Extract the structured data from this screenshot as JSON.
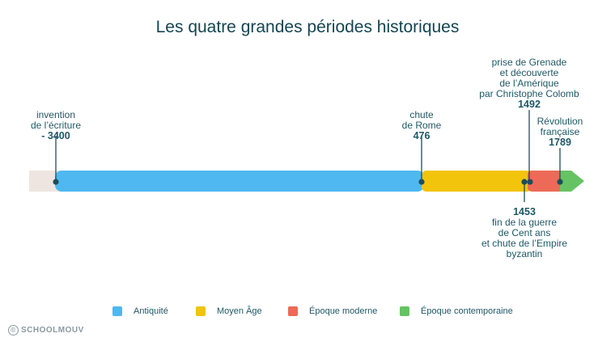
{
  "title": "Les quatre grandes périodes historiques",
  "colors": {
    "prehistory": "#eee5e0",
    "antiquite": "#4fb8f0",
    "moyen_age": "#f2c40c",
    "moderne": "#ec6a57",
    "contemporaine": "#66c363",
    "marker": "#1c4e5c"
  },
  "events": {
    "ecriture": {
      "lines": [
        "invention",
        "de l’écriture"
      ],
      "year": "- 3400"
    },
    "rome": {
      "lines": [
        "chute",
        "de Rome"
      ],
      "year": "476"
    },
    "grenade": {
      "lines": [
        "prise de Grenade",
        "et découverte",
        "de l’Amérique",
        "par Christophe Colomb"
      ],
      "year": "1492"
    },
    "revolution": {
      "lines": [
        "Révolution",
        "française"
      ],
      "year": "1789"
    },
    "cent_ans": {
      "year": "1453",
      "lines": [
        "fin de la guerre",
        "de Cent ans",
        "et chute de l’Empire",
        "byzantin"
      ]
    }
  },
  "legend": [
    {
      "label": "Antiquité",
      "color": "#4fb8f0"
    },
    {
      "label": "Moyen Âge",
      "color": "#f2c40c"
    },
    {
      "label": "Époque moderne",
      "color": "#ec6a57"
    },
    {
      "label": "Époque contemporaine",
      "color": "#66c363"
    }
  ],
  "brand": "SCHOOLMOUV"
}
